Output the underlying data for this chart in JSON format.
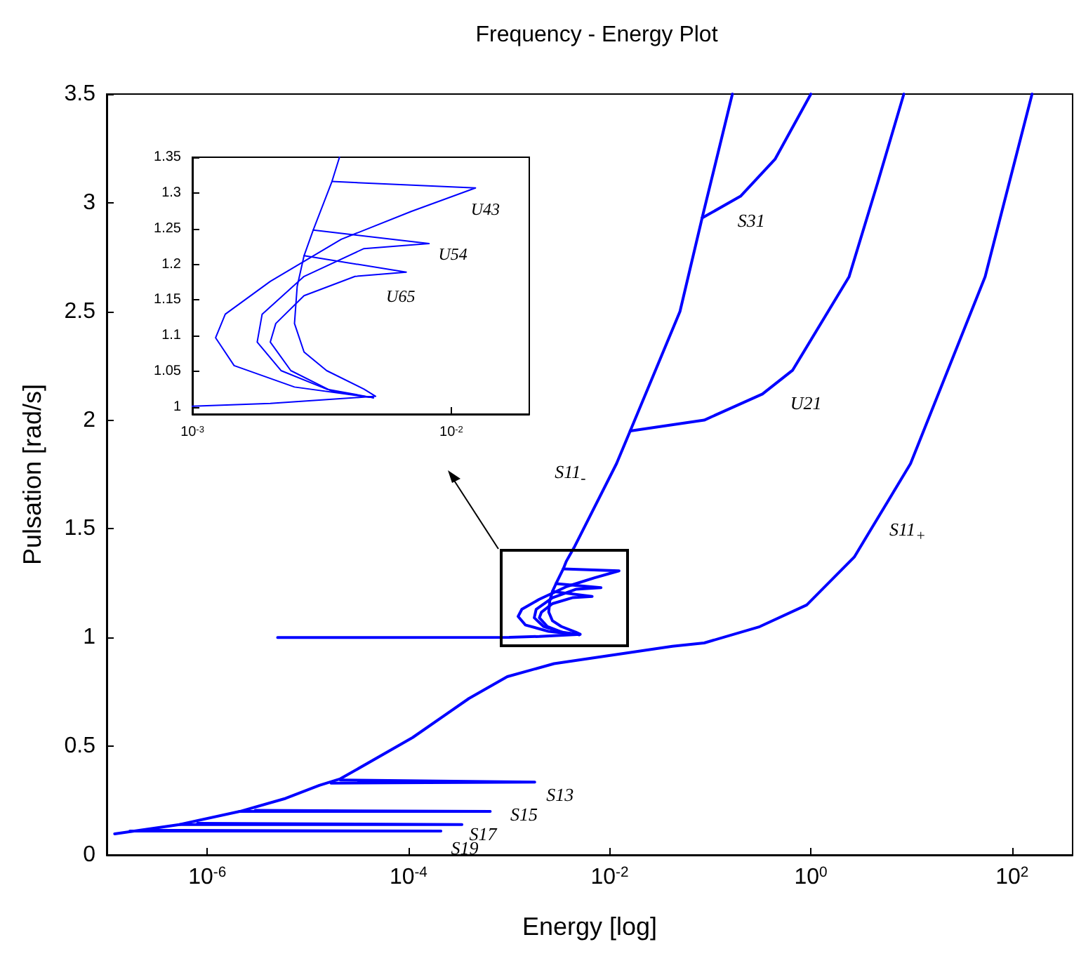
{
  "chart_data": [
    {
      "type": "line",
      "title": "Frequency - Energy Plot",
      "xlabel": "Energy [log]",
      "ylabel": "Pulsation [rad/s]",
      "log": "x",
      "xlim": [
        1e-07,
        400
      ],
      "ylim": [
        0,
        3.5
      ],
      "xticks": [
        {
          "value": 1e-06,
          "label": "10$^{-6}$"
        },
        {
          "value": 0.0001,
          "label": "10$^{-4}$"
        },
        {
          "value": 0.01,
          "label": "10$^{-2}$"
        },
        {
          "value": 1,
          "label": "10$^{0}$"
        },
        {
          "value": 100,
          "label": "10$^{2}$"
        }
      ],
      "yticks": [
        0,
        0.5,
        1,
        1.5,
        2,
        2.5,
        3,
        3.5
      ],
      "series": [
        {
          "name": "S11$_{-}$",
          "color": "#0000ff",
          "x": [
            5e-06,
            0.001,
            0.002,
            0.0051,
            0.0046,
            0.0033,
            0.0027,
            0.00248,
            0.00254,
            0.0027,
            0.00293,
            0.00346,
            0.0037,
            0.0045,
            0.0117,
            0.016,
            0.05,
            0.083,
            0.166
          ],
          "values": [
            1.0,
            1.001,
            1.005,
            1.015,
            1.025,
            1.051,
            1.077,
            1.117,
            1.169,
            1.212,
            1.248,
            1.316,
            1.35,
            1.42,
            1.8,
            1.95,
            2.5,
            2.93,
            3.5
          ]
        },
        {
          "color": "#0000ff",
          "x": [
            0.00346,
            0.0124,
            0.007,
            0.00376,
            0.002,
            0.00134,
            0.00123,
            0.00145,
            0.00248,
            0.005
          ],
          "values": [
            1.316,
            1.307,
            1.274,
            1.235,
            1.176,
            1.13,
            1.097,
            1.058,
            1.028,
            1.013
          ]
        },
        {
          "color": "#0000ff",
          "x": [
            0.00293,
            0.0082,
            0.0046,
            0.0027,
            0.00186,
            0.00178,
            0.0022,
            0.0033,
            0.005
          ],
          "values": [
            1.248,
            1.229,
            1.222,
            1.183,
            1.13,
            1.091,
            1.051,
            1.025,
            1.013
          ]
        },
        {
          "color": "#0000ff",
          "x": [
            0.0027,
            0.0067,
            0.00425,
            0.0027,
            0.0021,
            0.002,
            0.0024,
            0.00346,
            0.005
          ],
          "values": [
            1.212,
            1.189,
            1.183,
            1.156,
            1.117,
            1.091,
            1.051,
            1.022,
            1.013
          ]
        },
        {
          "name": "U21",
          "color": "#0000ff",
          "x": [
            0.016,
            0.087,
            0.33,
            0.66,
            2.4,
            4.6,
            8.4
          ],
          "values": [
            1.95,
            2.0,
            2.12,
            2.23,
            2.66,
            3.09,
            3.5
          ]
        },
        {
          "name": "S31",
          "color": "#0000ff",
          "x": [
            0.083,
            0.2,
            0.44,
            1.0
          ],
          "values": [
            2.93,
            3.03,
            3.2,
            3.5
          ]
        },
        {
          "name": "S11$_{+}$",
          "color": "#0000ff",
          "x": [
            1.2e-07,
            5.3e-07,
            2.1e-06,
            6e-06,
            1.3e-05,
            2.1e-05,
            0.00011,
            0.0004,
            0.00096,
            0.0028,
            0.042,
            0.087,
            0.31,
            0.91,
            2.7,
            9.8,
            54,
            158
          ],
          "values": [
            0.097,
            0.14,
            0.2,
            0.26,
            0.32,
            0.35,
            0.54,
            0.72,
            0.82,
            0.88,
            0.96,
            0.975,
            1.05,
            1.15,
            1.37,
            1.8,
            2.66,
            3.5
          ]
        },
        {
          "name": "S13",
          "color": "#0000ff",
          "x": [
            1.7e-05,
            0.0018,
            2.1e-05
          ],
          "values": [
            0.33,
            0.335,
            0.345
          ]
        },
        {
          "name": "S15",
          "color": "#0000ff",
          "x": [
            2.1e-06,
            0.00065,
            3e-06
          ],
          "values": [
            0.2,
            0.2,
            0.205
          ]
        },
        {
          "name": "S17",
          "color": "#0000ff",
          "x": [
            5.3e-07,
            0.00034,
            8e-07
          ],
          "values": [
            0.14,
            0.14,
            0.145
          ]
        },
        {
          "name": "S19",
          "color": "#0000ff",
          "x": [
            1.7e-07,
            0.00021,
            2.5e-07
          ],
          "values": [
            0.11,
            0.11,
            0.113
          ]
        }
      ]
    },
    {
      "type": "line",
      "log": "x",
      "xlim": [
        0.001,
        0.02
      ],
      "ylim": [
        0.99,
        1.35
      ],
      "xticks": [
        {
          "value": 0.001,
          "label": "10$^{-3}$"
        },
        {
          "value": 0.01,
          "label": "10$^{-2}$"
        }
      ],
      "yticks": [
        1,
        1.05,
        1.1,
        1.15,
        1.2,
        1.25,
        1.3,
        1.35
      ],
      "series": [
        {
          "color": "#0000ff",
          "x": [
            0.001,
            0.002,
            0.0051,
            0.0046,
            0.0033,
            0.0027,
            0.00248,
            0.00254,
            0.0027,
            0.00293,
            0.00346,
            0.0037
          ],
          "values": [
            1.001,
            1.005,
            1.015,
            1.025,
            1.051,
            1.077,
            1.117,
            1.169,
            1.212,
            1.248,
            1.316,
            1.35
          ]
        },
        {
          "name": "U43",
          "color": "#0000ff",
          "x": [
            0.00346,
            0.0124,
            0.007,
            0.00376,
            0.002,
            0.00134,
            0.00123,
            0.00145,
            0.00248,
            0.005
          ],
          "values": [
            1.316,
            1.307,
            1.274,
            1.235,
            1.176,
            1.13,
            1.097,
            1.058,
            1.028,
            1.013
          ]
        },
        {
          "name": "U54",
          "color": "#0000ff",
          "x": [
            0.00293,
            0.0082,
            0.0046,
            0.0027,
            0.00186,
            0.00178,
            0.0022,
            0.0033,
            0.005
          ],
          "values": [
            1.248,
            1.229,
            1.222,
            1.183,
            1.13,
            1.091,
            1.051,
            1.025,
            1.013
          ]
        },
        {
          "name": "U65",
          "color": "#0000ff",
          "x": [
            0.0027,
            0.0067,
            0.00425,
            0.0027,
            0.0021,
            0.002,
            0.0024,
            0.00346,
            0.005
          ],
          "values": [
            1.212,
            1.189,
            1.183,
            1.156,
            1.117,
            1.091,
            1.051,
            1.022,
            1.013
          ]
        }
      ]
    }
  ]
}
